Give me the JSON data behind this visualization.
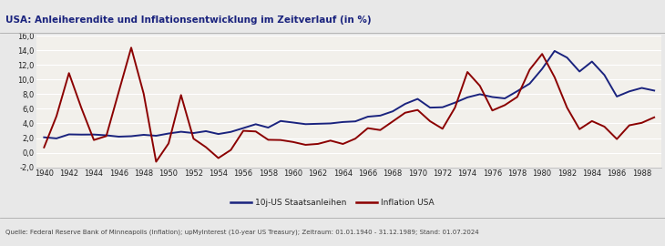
{
  "title": "USA: Anleiherendite und Inflationsentwicklung im Zeitverlauf (in %)",
  "source": "Quelle: Federal Reserve Bank of Minneapolis (Inflation); upMyInterest (10-year US Treasury); Zeitraum: 01.01.1940 - 31.12.1989; Stand: 01.07.2024",
  "legend_bond": "10j-US Staatsanleihen",
  "legend_inflation": "Inflation USA",
  "bond_color": "#1a237e",
  "inflation_color": "#8b0000",
  "bg_color": "#e8e8e8",
  "plot_bg": "#f2f0eb",
  "title_color": "#1a237e",
  "grid_color": "#ffffff",
  "ylim": [
    -2.0,
    16.0
  ],
  "ytick_vals": [
    -2.0,
    0.0,
    2.0,
    4.0,
    6.0,
    8.0,
    10.0,
    12.0,
    14.0,
    16.0
  ],
  "xtick_vals": [
    1940,
    1942,
    1944,
    1946,
    1948,
    1950,
    1952,
    1954,
    1956,
    1958,
    1960,
    1962,
    1964,
    1966,
    1968,
    1970,
    1972,
    1974,
    1976,
    1978,
    1980,
    1982,
    1984,
    1986,
    1988
  ],
  "years": [
    1940,
    1941,
    1942,
    1943,
    1944,
    1945,
    1946,
    1947,
    1948,
    1949,
    1950,
    1951,
    1952,
    1953,
    1954,
    1955,
    1956,
    1957,
    1958,
    1959,
    1960,
    1961,
    1962,
    1963,
    1964,
    1965,
    1966,
    1967,
    1968,
    1969,
    1970,
    1971,
    1972,
    1973,
    1974,
    1975,
    1976,
    1977,
    1978,
    1979,
    1980,
    1981,
    1982,
    1983,
    1984,
    1985,
    1986,
    1987,
    1988,
    1989
  ],
  "bond_yield": [
    2.1,
    1.95,
    2.5,
    2.47,
    2.48,
    2.37,
    2.19,
    2.25,
    2.44,
    2.31,
    2.62,
    2.86,
    2.68,
    2.94,
    2.55,
    2.84,
    3.36,
    3.89,
    3.43,
    4.33,
    4.12,
    3.9,
    3.95,
    4.0,
    4.19,
    4.28,
    4.92,
    5.07,
    5.65,
    6.67,
    7.35,
    6.16,
    6.21,
    6.84,
    7.56,
    7.99,
    7.61,
    7.42,
    8.41,
    9.44,
    11.46,
    13.91,
    13.0,
    11.1,
    12.46,
    10.62,
    7.68,
    8.38,
    8.85,
    8.49
  ],
  "inflation": [
    0.72,
    5.0,
    10.88,
    6.1,
    1.73,
    2.27,
    8.33,
    14.36,
    8.07,
    -1.24,
    1.26,
    7.88,
    1.92,
    0.75,
    -0.74,
    0.37,
    2.99,
    2.9,
    1.76,
    1.73,
    1.46,
    1.07,
    1.2,
    1.65,
    1.19,
    1.92,
    3.35,
    3.09,
    4.27,
    5.46,
    5.84,
    4.3,
    3.27,
    6.16,
    11.03,
    9.14,
    5.77,
    6.5,
    7.62,
    11.35,
    13.5,
    10.32,
    6.16,
    3.21,
    4.32,
    3.56,
    1.86,
    3.74,
    4.08,
    4.83
  ],
  "title_fontsize": 7.5,
  "tick_fontsize": 6.0,
  "source_fontsize": 5.0,
  "legend_fontsize": 6.5,
  "linewidth": 1.4
}
